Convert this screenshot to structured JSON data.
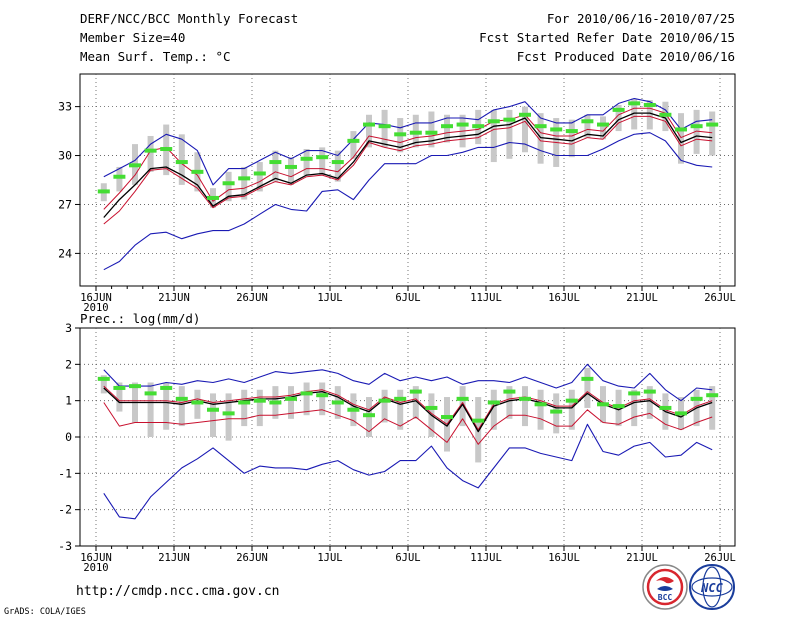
{
  "header": {
    "left": [
      "DERF/NCC/BCC Monthly Forecast",
      "Member Size=40",
      "Mean Surf. Temp.: °C"
    ],
    "right": [
      "For 2010/06/16-2010/07/25",
      "Fcst Started Refer Date 2010/06/15",
      "Fcst Produced Date 2010/06/16"
    ]
  },
  "colors": {
    "bar": "#c8c8c8",
    "median": "#44dd33",
    "max_min": "#1a1ab4",
    "mean": "#000000",
    "ref": "#c8102e",
    "grid": "#555555",
    "logo_red": "#d8262e",
    "logo_blue": "#1a3d9c"
  },
  "footer": {
    "url": "http://cmdp.ncc.cma.gov.cn",
    "credit": "GrADS: COLA/IGES",
    "logo1_text": "BCC",
    "logo2_text": "NCC"
  },
  "chart_data": [
    {
      "type": "line",
      "title": "Mean Surf. Temp.: °C",
      "x_start": "2010/06/16",
      "days": 40,
      "ylim": [
        22,
        35
      ],
      "yticks": [
        24,
        27,
        30,
        33
      ],
      "xtick_labels": [
        "16JUN",
        "21JUN",
        "26JUN",
        "1JUL",
        "6JUL",
        "11JUL",
        "16JUL",
        "21JUL",
        "26JUL"
      ],
      "xtick_days": [
        0,
        5,
        10,
        15,
        20,
        25,
        30,
        35,
        40
      ],
      "year_label": "2010",
      "grid": true,
      "series": [
        {
          "name": "max",
          "values": [
            28.7,
            29.2,
            29.7,
            30.7,
            31.3,
            31.0,
            30.3,
            28.2,
            29.2,
            29.2,
            29.7,
            30.2,
            29.8,
            30.3,
            30.3,
            30.0,
            31.0,
            32.0,
            31.9,
            31.7,
            32.0,
            32.0,
            32.3,
            32.3,
            32.2,
            32.8,
            33.0,
            33.3,
            32.3,
            32.0,
            32.0,
            32.5,
            32.5,
            33.2,
            33.5,
            33.3,
            32.8,
            31.6,
            32.1,
            32.2
          ]
        },
        {
          "name": "mean",
          "values": [
            26.2,
            27.3,
            28.2,
            29.2,
            29.3,
            28.8,
            28.2,
            26.9,
            27.5,
            27.6,
            28.1,
            28.6,
            28.3,
            28.8,
            28.9,
            28.6,
            29.6,
            30.9,
            30.7,
            30.5,
            30.8,
            30.9,
            31.1,
            31.2,
            31.3,
            31.8,
            31.9,
            32.3,
            31.1,
            31.0,
            30.9,
            31.3,
            31.2,
            32.2,
            32.6,
            32.6,
            32.3,
            30.8,
            31.2,
            31.1
          ]
        },
        {
          "name": "ref",
          "values": [
            25.8,
            26.6,
            27.8,
            29.1,
            29.2,
            28.6,
            28.0,
            26.8,
            27.4,
            27.5,
            28.0,
            28.4,
            28.2,
            28.7,
            28.8,
            28.5,
            29.4,
            30.8,
            30.5,
            30.3,
            30.6,
            30.7,
            30.9,
            31.0,
            31.1,
            31.6,
            31.7,
            32.1,
            30.9,
            30.8,
            30.7,
            31.1,
            31.0,
            32.0,
            32.4,
            32.4,
            32.1,
            30.6,
            31.0,
            30.9
          ]
        },
        {
          "name": "ens",
          "values": [
            26.7,
            27.7,
            28.8,
            30.3,
            30.5,
            29.5,
            28.8,
            27.2,
            27.9,
            28.0,
            28.4,
            29.0,
            28.7,
            29.2,
            29.2,
            29.0,
            29.9,
            31.2,
            31.0,
            30.8,
            31.1,
            31.2,
            31.4,
            31.5,
            31.6,
            32.1,
            32.2,
            32.5,
            31.4,
            31.2,
            31.2,
            31.6,
            31.5,
            32.5,
            32.9,
            32.9,
            32.6,
            31.1,
            31.5,
            31.4
          ]
        },
        {
          "name": "min",
          "values": [
            23.0,
            23.5,
            24.5,
            25.2,
            25.3,
            24.9,
            25.2,
            25.4,
            25.4,
            25.8,
            26.4,
            27.0,
            26.7,
            26.6,
            27.8,
            27.9,
            27.3,
            28.5,
            29.5,
            29.5,
            29.5,
            30.0,
            30.0,
            30.2,
            30.5,
            30.5,
            30.8,
            30.7,
            30.3,
            30.0,
            30.0,
            30.0,
            30.4,
            30.9,
            31.3,
            31.4,
            30.9,
            29.7,
            29.4,
            29.3
          ]
        },
        {
          "name": "median",
          "values": [
            27.8,
            28.7,
            29.4,
            30.3,
            30.4,
            29.6,
            29.0,
            27.4,
            28.3,
            28.6,
            28.9,
            29.6,
            29.3,
            29.8,
            29.9,
            29.6,
            30.9,
            31.9,
            31.8,
            31.3,
            31.4,
            31.4,
            31.8,
            31.9,
            31.8,
            32.1,
            32.2,
            32.5,
            31.8,
            31.6,
            31.5,
            32.1,
            31.9,
            32.8,
            33.2,
            33.1,
            32.5,
            31.6,
            31.8,
            31.9
          ]
        },
        {
          "name": "bar_low",
          "values": [
            27.2,
            27.8,
            28.2,
            29.0,
            28.8,
            28.2,
            27.8,
            26.8,
            27.2,
            27.3,
            27.8,
            28.4,
            28.2,
            28.8,
            28.8,
            28.4,
            29.8,
            30.5,
            30.5,
            30.2,
            30.5,
            30.5,
            30.8,
            30.5,
            30.7,
            29.6,
            29.8,
            30.2,
            29.5,
            29.3,
            29.9,
            31.1,
            31.0,
            31.5,
            31.6,
            31.6,
            31.5,
            29.5,
            30.1,
            30.0
          ]
        },
        {
          "name": "bar_high",
          "values": [
            28.3,
            29.3,
            30.7,
            31.2,
            31.9,
            31.3,
            30.2,
            28.0,
            29.0,
            29.3,
            29.6,
            30.3,
            29.9,
            30.4,
            30.5,
            30.3,
            31.5,
            32.5,
            32.8,
            32.3,
            32.5,
            32.7,
            32.5,
            32.5,
            32.8,
            32.8,
            32.8,
            33.0,
            32.6,
            32.3,
            32.2,
            32.5,
            32.4,
            33.1,
            33.5,
            33.4,
            33.3,
            32.6,
            32.8,
            32.7
          ]
        }
      ]
    },
    {
      "type": "line",
      "title": "Prec.: log(mm/d)",
      "x_start": "2010/06/16",
      "days": 40,
      "ylim": [
        -3,
        3
      ],
      "yticks": [
        -3,
        -2,
        -1,
        0,
        1,
        2,
        3
      ],
      "xtick_labels": [
        "16JUN",
        "21JUN",
        "26JUN",
        "1JUL",
        "6JUL",
        "11JUL",
        "16JUL",
        "21JUL",
        "26JUL"
      ],
      "xtick_days": [
        0,
        5,
        10,
        15,
        20,
        25,
        30,
        35,
        40
      ],
      "year_label": "2010",
      "grid": true,
      "series": [
        {
          "name": "max",
          "values": [
            1.85,
            1.4,
            1.4,
            1.4,
            1.5,
            1.45,
            1.55,
            1.5,
            1.6,
            1.5,
            1.65,
            1.8,
            1.75,
            1.8,
            1.85,
            1.75,
            1.55,
            1.45,
            1.75,
            1.55,
            1.65,
            1.55,
            1.65,
            1.45,
            1.55,
            1.55,
            1.5,
            1.65,
            1.5,
            1.35,
            1.5,
            2.0,
            1.55,
            1.4,
            1.35,
            1.75,
            1.3,
            1.0,
            1.35,
            1.3
          ]
        },
        {
          "name": "mean",
          "values": [
            1.35,
            0.95,
            0.95,
            0.95,
            0.95,
            0.9,
            1.0,
            0.9,
            0.95,
            1.0,
            1.05,
            1.05,
            1.1,
            1.2,
            1.25,
            1.1,
            0.85,
            0.7,
            1.05,
            0.9,
            1.0,
            0.6,
            0.3,
            0.9,
            0.15,
            0.85,
            1.0,
            1.05,
            0.95,
            0.8,
            0.8,
            1.2,
            0.9,
            0.75,
            0.95,
            1.0,
            0.7,
            0.55,
            0.8,
            0.95
          ]
        },
        {
          "name": "ref",
          "values": [
            0.95,
            0.3,
            0.4,
            0.4,
            0.4,
            0.35,
            0.4,
            0.45,
            0.5,
            0.5,
            0.6,
            0.6,
            0.65,
            0.7,
            0.75,
            0.6,
            0.45,
            0.15,
            0.5,
            0.3,
            0.55,
            0.2,
            -0.15,
            0.5,
            -0.2,
            0.3,
            0.6,
            0.6,
            0.5,
            0.3,
            0.3,
            0.75,
            0.4,
            0.35,
            0.55,
            0.65,
            0.35,
            0.2,
            0.4,
            0.55
          ]
        },
        {
          "name": "ens",
          "values": [
            1.4,
            1.0,
            1.0,
            1.0,
            1.0,
            0.95,
            1.05,
            0.95,
            1.0,
            1.05,
            1.1,
            1.1,
            1.15,
            1.25,
            1.3,
            1.15,
            0.9,
            0.75,
            1.1,
            0.95,
            1.05,
            0.65,
            0.35,
            0.95,
            0.2,
            0.9,
            1.05,
            1.1,
            1.0,
            0.85,
            0.85,
            1.25,
            0.95,
            0.8,
            1.0,
            1.05,
            0.75,
            0.6,
            0.85,
            1.0
          ]
        },
        {
          "name": "min",
          "values": [
            -1.55,
            -2.2,
            -2.25,
            -1.65,
            -1.25,
            -0.85,
            -0.6,
            -0.3,
            -0.65,
            -1.0,
            -0.8,
            -0.85,
            -0.85,
            -0.9,
            -0.75,
            -0.65,
            -0.9,
            -1.05,
            -0.95,
            -0.65,
            -0.65,
            -0.25,
            -0.85,
            -1.2,
            -1.4,
            -0.85,
            -0.3,
            -0.3,
            -0.45,
            -0.55,
            -0.65,
            0.35,
            -0.4,
            -0.5,
            -0.25,
            -0.15,
            -0.55,
            -0.5,
            -0.15,
            -0.35
          ]
        },
        {
          "name": "median",
          "values": [
            1.6,
            1.35,
            1.4,
            1.2,
            1.35,
            1.05,
            0.95,
            0.75,
            0.65,
            0.95,
            1.0,
            0.95,
            1.05,
            1.2,
            1.15,
            0.95,
            0.75,
            0.6,
            1.0,
            1.05,
            1.25,
            0.8,
            0.55,
            1.05,
            0.45,
            0.95,
            1.25,
            1.05,
            0.9,
            0.7,
            1.0,
            1.6,
            0.9,
            0.85,
            1.2,
            1.25,
            0.8,
            0.65,
            1.05,
            1.15
          ]
        },
        {
          "name": "bar_low",
          "values": [
            1.2,
            0.7,
            0.4,
            0.0,
            0.2,
            0.3,
            0.5,
            0.0,
            -0.1,
            0.3,
            0.3,
            0.5,
            0.5,
            0.6,
            0.6,
            0.5,
            0.3,
            0.0,
            0.4,
            0.2,
            0.5,
            0.0,
            -0.4,
            0.3,
            -0.7,
            0.2,
            0.5,
            0.3,
            0.2,
            0.1,
            0.2,
            0.8,
            0.4,
            0.3,
            0.3,
            0.5,
            0.2,
            0.2,
            0.3,
            0.2
          ]
        },
        {
          "name": "bar_high",
          "values": [
            1.7,
            1.5,
            1.5,
            1.5,
            1.5,
            1.4,
            1.3,
            1.2,
            1.2,
            1.3,
            1.3,
            1.4,
            1.4,
            1.5,
            1.5,
            1.4,
            1.2,
            1.1,
            1.3,
            1.3,
            1.4,
            1.2,
            1.1,
            1.4,
            1.1,
            1.3,
            1.4,
            1.4,
            1.3,
            1.2,
            1.3,
            1.9,
            1.4,
            1.3,
            1.3,
            1.4,
            1.2,
            1.1,
            1.3,
            1.4
          ]
        }
      ]
    }
  ]
}
